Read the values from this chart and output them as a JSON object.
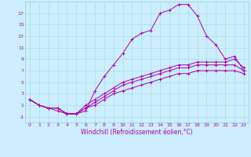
{
  "title": "",
  "xlabel": "Windchill (Refroidissement éolien,°C)",
  "bg_color": "#cceeff",
  "line_color": "#aa00aa",
  "grid_color": "#aadddd",
  "xlim": [
    -0.5,
    23.5
  ],
  "ylim": [
    -2,
    19
  ],
  "xticks": [
    0,
    1,
    2,
    3,
    4,
    5,
    6,
    7,
    8,
    9,
    10,
    11,
    12,
    13,
    14,
    15,
    16,
    17,
    18,
    19,
    20,
    21,
    22,
    23
  ],
  "yticks": [
    -1,
    1,
    3,
    5,
    7,
    9,
    11,
    13,
    15,
    17
  ],
  "series": [
    [
      2,
      1,
      0.5,
      0,
      -0.5,
      -0.5,
      0,
      3.5,
      6,
      8,
      10,
      12.5,
      13.5,
      14,
      17,
      17.5,
      18.5,
      18.5,
      16.5,
      13,
      11.5,
      9,
      9.5,
      7
    ],
    [
      2,
      1,
      0.5,
      0.5,
      -0.5,
      -0.5,
      1.0,
      2.0,
      3.0,
      4.0,
      5.0,
      5.5,
      6.0,
      6.5,
      7.0,
      7.5,
      8.0,
      8.0,
      8.5,
      8.5,
      8.5,
      8.5,
      9.0,
      7.5
    ],
    [
      2,
      1,
      0.5,
      0.5,
      -0.5,
      -0.5,
      0.5,
      1.5,
      2.5,
      3.5,
      4.5,
      5.0,
      5.5,
      6.0,
      6.5,
      7.0,
      7.5,
      7.5,
      8.0,
      8.0,
      8.0,
      8.0,
      8.0,
      7.0
    ],
    [
      2,
      1,
      0.5,
      0.5,
      -0.5,
      -0.5,
      0.5,
      1.0,
      2.0,
      3.0,
      3.5,
      4.0,
      4.5,
      5.0,
      5.5,
      6.0,
      6.5,
      6.5,
      7.0,
      7.0,
      7.0,
      7.0,
      7.0,
      6.5
    ]
  ],
  "xlabel_fontsize": 5.5,
  "tick_fontsize": 4.5
}
